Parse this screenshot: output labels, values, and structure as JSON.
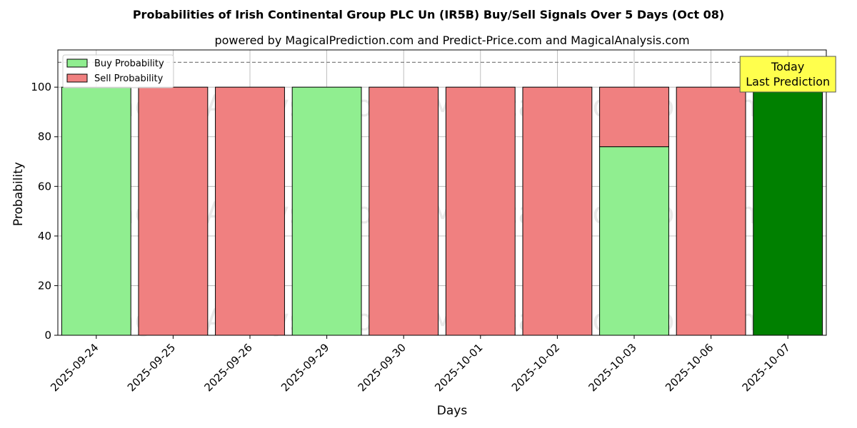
{
  "chart_data": {
    "type": "bar",
    "title": "Probabilities of Irish Continental Group PLC Un (IR5B) Buy/Sell Signals Over 5 Days (Oct 08)",
    "subtitle": "powered by MagicalPrediction.com and Predict-Price.com and MagicalAnalysis.com",
    "xlabel": "Days",
    "ylabel": "Probability",
    "ylim": [
      0,
      115
    ],
    "yticks": [
      0,
      20,
      40,
      60,
      80,
      100
    ],
    "categories": [
      "2025-09-24",
      "2025-09-25",
      "2025-09-26",
      "2025-09-29",
      "2025-09-30",
      "2025-10-01",
      "2025-10-02",
      "2025-10-03",
      "2025-10-06",
      "2025-10-07"
    ],
    "series": [
      {
        "name": "Buy Probability",
        "color": "#90ee90",
        "values": [
          100,
          0,
          0,
          100,
          0,
          0,
          0,
          76,
          0,
          100
        ]
      },
      {
        "name": "Sell Probability",
        "color": "#f08080",
        "values": [
          0,
          100,
          100,
          0,
          100,
          100,
          100,
          24,
          100,
          0
        ]
      }
    ],
    "highlight": {
      "category": "2025-10-07",
      "color": "#008000"
    },
    "reference_line": {
      "y": 110,
      "style": "dashed",
      "color": "#808080"
    },
    "annotation": {
      "lines": [
        "Today",
        "Last Prediction"
      ],
      "background": "#ffff4d"
    },
    "legend": {
      "placement": "top-left"
    },
    "grid": true,
    "watermarks": [
      "MagicalAnalysis.com",
      "MagicalPrediction.com"
    ]
  }
}
